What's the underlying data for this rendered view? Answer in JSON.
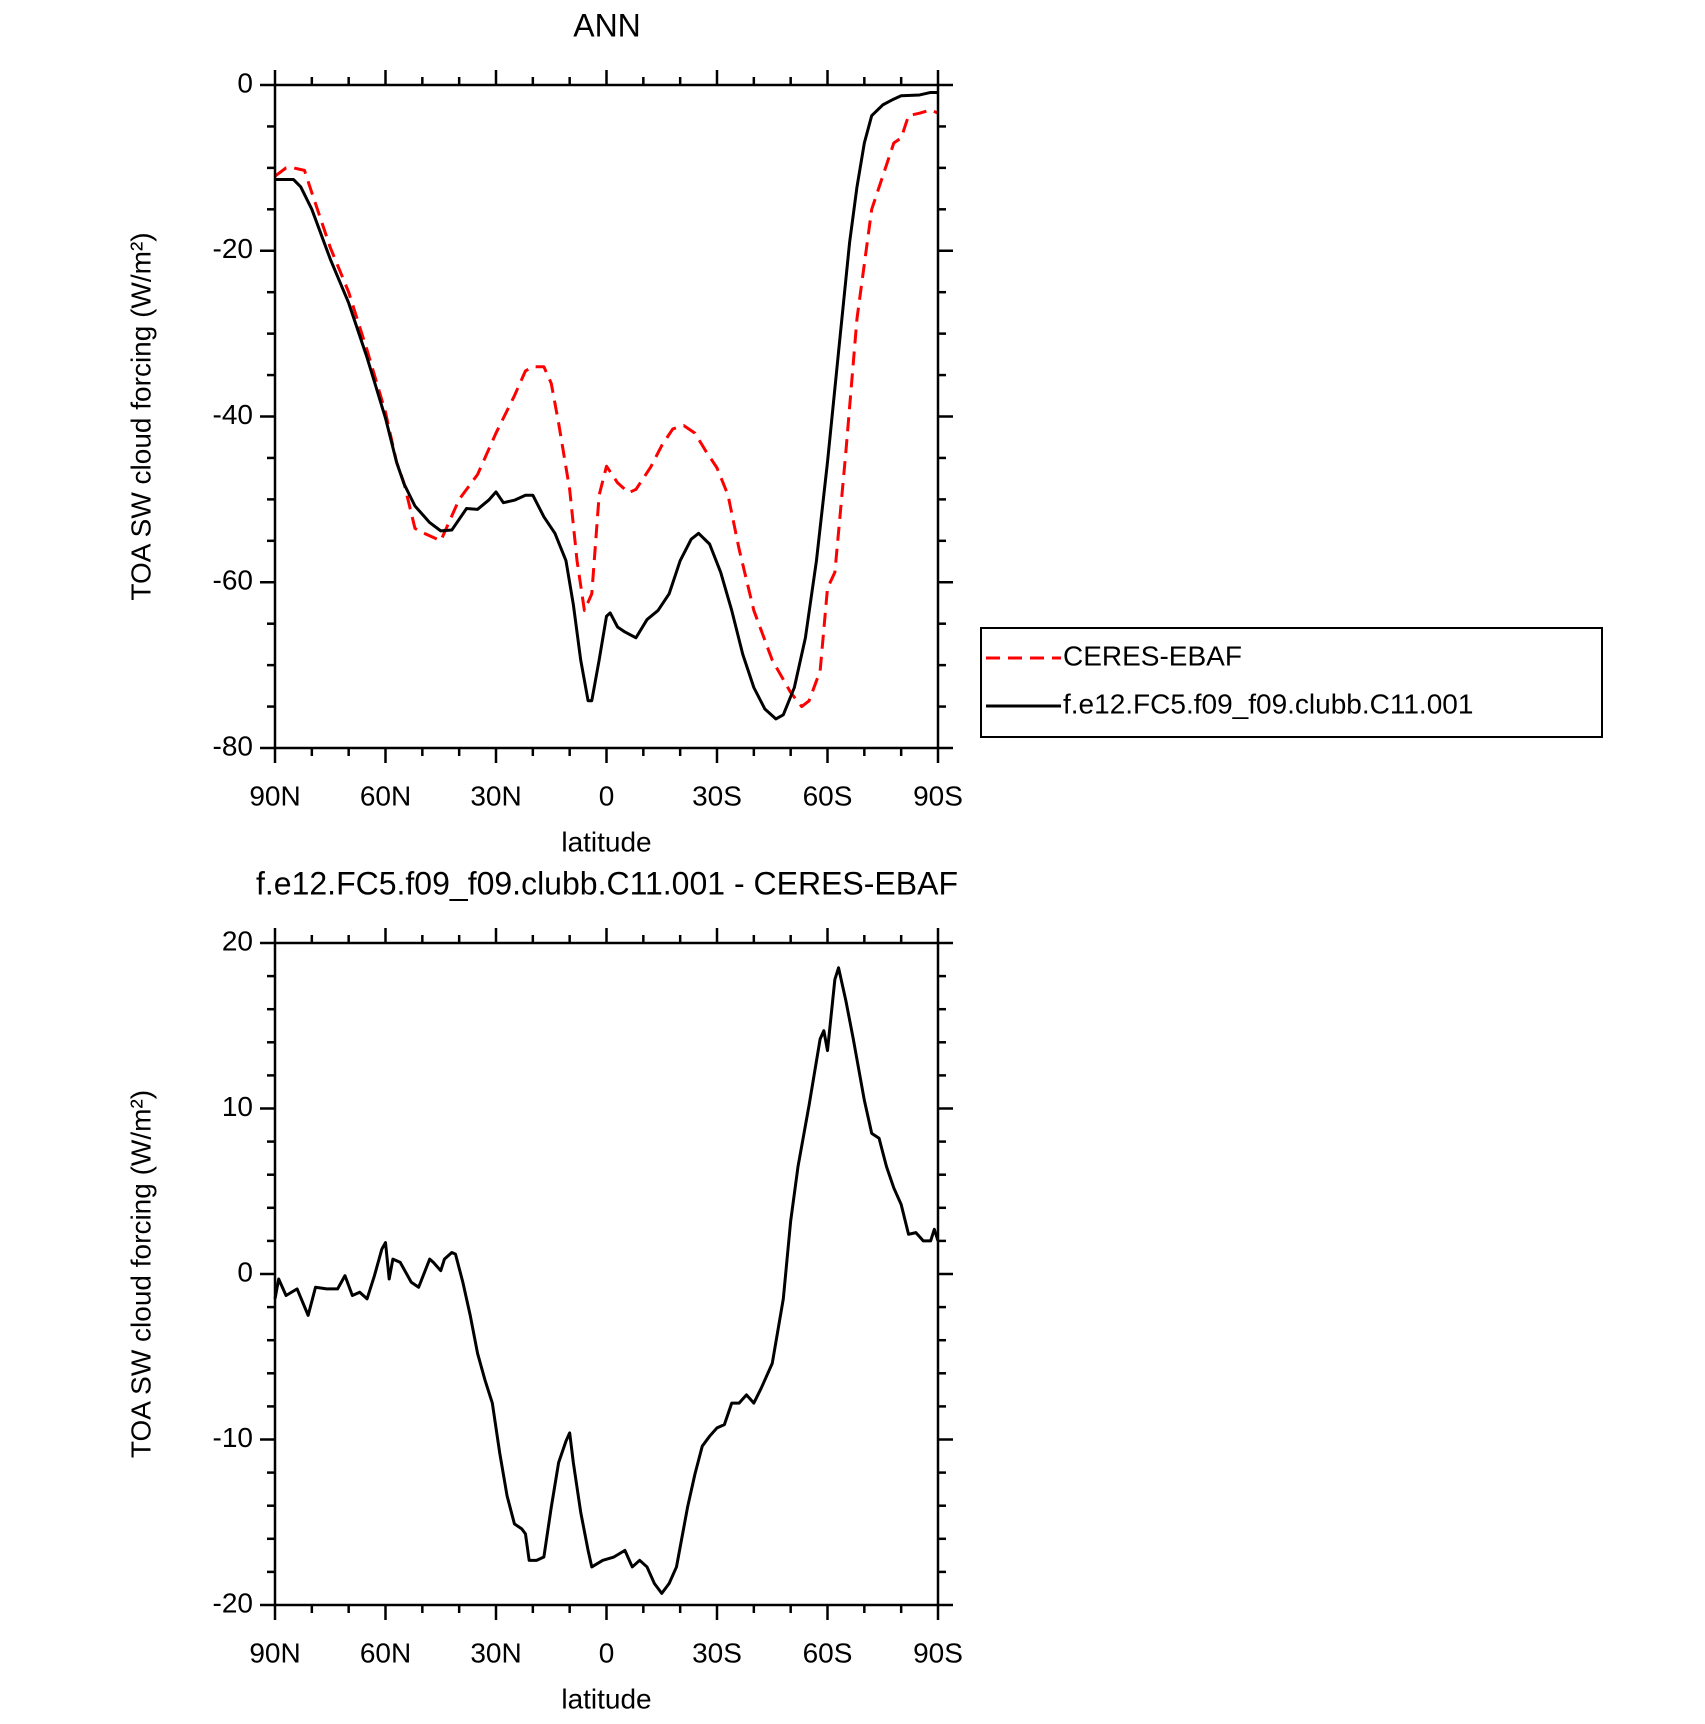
{
  "chart_data": [
    {
      "type": "line",
      "title": "ANN",
      "xlabel": "latitude",
      "ylabel": "TOA SW cloud forcing (W/m²)",
      "xlim": [
        90,
        -90
      ],
      "xticks": [
        {
          "value": 90,
          "label": "90N"
        },
        {
          "value": 60,
          "label": "60N"
        },
        {
          "value": 30,
          "label": "30N"
        },
        0,
        {
          "value": -30,
          "label": "30S"
        },
        {
          "value": -60,
          "label": "60S"
        },
        {
          "value": -90,
          "label": "90S"
        }
      ],
      "xminorticks": [
        80,
        70,
        50,
        40,
        20,
        10,
        -10,
        -20,
        -40,
        -50,
        -70,
        -80
      ],
      "ylim": [
        -80,
        0
      ],
      "yticks": [
        -80,
        -60,
        -40,
        -20,
        0
      ],
      "yminorticks": [
        -75,
        -70,
        -65,
        -55,
        -50,
        -45,
        -35,
        -30,
        -25,
        -15,
        -10,
        -5
      ],
      "legend": "right",
      "series": [
        {
          "name": "CERES-EBAF",
          "color": "#ff0000",
          "dash": true,
          "x": [
            90,
            87,
            85,
            82,
            80,
            75,
            70,
            65,
            60,
            57,
            55,
            52,
            50,
            45,
            40,
            35,
            30,
            25,
            22,
            20,
            17,
            15,
            13,
            10,
            8,
            6,
            4,
            2,
            0,
            -3,
            -6,
            -8,
            -12,
            -15,
            -18,
            -21,
            -24,
            -27,
            -30,
            -33,
            -36,
            -40,
            -45,
            -50,
            -53,
            -55,
            -58,
            -60,
            -62,
            -65,
            -68,
            -72,
            -75,
            -78,
            -80,
            -82,
            -85,
            -88,
            -90
          ],
          "values": [
            -11,
            -10,
            -10,
            -10.3,
            -13,
            -19.6,
            -25,
            -32,
            -39.5,
            -45.5,
            -48,
            -53.5,
            -54,
            -55,
            -50,
            -47,
            -42,
            -37.5,
            -34.5,
            -34,
            -34,
            -36,
            -40.8,
            -48.8,
            -57.4,
            -63.4,
            -61.4,
            -49.5,
            -46,
            -48,
            -49.2,
            -48.8,
            -46.1,
            -43.5,
            -41.5,
            -41.1,
            -42,
            -44.2,
            -46.2,
            -49.5,
            -56,
            -63.4,
            -69.4,
            -73.3,
            -75,
            -74.3,
            -70.7,
            -60.7,
            -58.8,
            -44.2,
            -28.2,
            -15,
            -11,
            -7,
            -6.4,
            -3.7,
            -3.4,
            -3,
            -3.4
          ]
        },
        {
          "name": "f.e12.FC5.f09_f09.clubb.C11.001",
          "color": "#000000",
          "dash": false,
          "x": [
            90,
            85,
            83,
            80,
            75,
            70,
            65,
            60,
            57,
            55,
            52,
            48,
            45,
            42,
            38,
            35,
            32,
            30,
            28,
            25,
            22,
            20,
            17,
            14,
            11,
            9,
            7,
            5,
            4,
            2,
            0,
            -1,
            -3,
            -5,
            -8,
            -11,
            -14,
            -17,
            -20,
            -23,
            -25,
            -28,
            -31,
            -34,
            -37,
            -40,
            -43,
            -46,
            -48,
            -51,
            -54,
            -57,
            -60,
            -63,
            -66,
            -68,
            -70,
            -72,
            -75,
            -78,
            -80,
            -85,
            -88,
            -90
          ],
          "values": [
            -11.4,
            -11.4,
            -12.3,
            -15,
            -21,
            -26.3,
            -32.9,
            -40.2,
            -45.5,
            -48.1,
            -50.8,
            -52.8,
            -53.8,
            -53.7,
            -51.1,
            -51.2,
            -50.1,
            -49.1,
            -50.4,
            -50.1,
            -49.5,
            -49.5,
            -52.1,
            -54.1,
            -57.4,
            -62.7,
            -69.4,
            -74.3,
            -74.3,
            -69.4,
            -64.1,
            -63.7,
            -65.4,
            -66,
            -66.7,
            -64.5,
            -63.4,
            -61.4,
            -57.4,
            -54.8,
            -54.1,
            -55.4,
            -58.8,
            -63.4,
            -68.7,
            -72.7,
            -75.3,
            -76.5,
            -76,
            -72.7,
            -66.7,
            -57.4,
            -45.5,
            -32.2,
            -19,
            -12.3,
            -7,
            -3.7,
            -2.4,
            -1.7,
            -1.3,
            -1.2,
            -0.9,
            -0.9
          ]
        }
      ]
    },
    {
      "type": "line",
      "title": "f.e12.FC5.f09_f09.clubb.C11.001 - CERES-EBAF",
      "xlabel": "latitude",
      "ylabel": "TOA SW cloud forcing (W/m²)",
      "xlim": [
        90,
        -90
      ],
      "xticks": [
        {
          "value": 90,
          "label": "90N"
        },
        {
          "value": 60,
          "label": "60N"
        },
        {
          "value": 30,
          "label": "30N"
        },
        0,
        {
          "value": -30,
          "label": "30S"
        },
        {
          "value": -60,
          "label": "60S"
        },
        {
          "value": -90,
          "label": "90S"
        }
      ],
      "xminorticks": [
        80,
        70,
        50,
        40,
        20,
        10,
        -10,
        -20,
        -40,
        -50,
        -70,
        -80
      ],
      "ylim": [
        -20,
        20
      ],
      "yticks": [
        -20,
        -10,
        0,
        10,
        20
      ],
      "yminorticks": [
        -18,
        -16,
        -14,
        -12,
        -8,
        -6,
        -4,
        -2,
        2,
        4,
        6,
        8,
        12,
        14,
        16,
        18
      ],
      "series": [
        {
          "color": "#000000",
          "dash": false,
          "x": [
            90,
            89,
            87,
            84,
            81,
            79,
            76,
            73,
            71,
            69,
            67,
            65,
            63,
            61,
            60,
            59,
            58,
            56,
            53,
            51,
            48,
            47,
            45,
            44,
            42,
            41,
            39,
            37,
            35,
            33,
            31,
            29,
            27,
            25,
            23,
            22,
            21,
            19,
            17,
            15,
            13,
            11,
            10,
            9,
            7,
            5,
            4,
            1,
            -2,
            -5,
            -7,
            -9,
            -11,
            -13,
            -15,
            -17,
            -19,
            -22,
            -24,
            -26,
            -28,
            -30,
            -32,
            -34,
            -36,
            -38,
            -40,
            -42,
            -45,
            -48,
            -50,
            -52,
            -55,
            -58,
            -59,
            -60,
            -62,
            -63,
            -65,
            -67,
            -70,
            -72,
            -74,
            -76,
            -78,
            -80,
            -82,
            -84,
            -86,
            -88,
            -89,
            -90
          ],
          "values": [
            -1.5,
            -0.3,
            -1.3,
            -0.9,
            -2.5,
            -0.8,
            -0.9,
            -0.9,
            -0.1,
            -1.3,
            -1.1,
            -1.5,
            -0.1,
            1.5,
            1.9,
            -0.3,
            0.9,
            0.7,
            -0.5,
            -0.8,
            0.9,
            0.7,
            0.2,
            0.9,
            1.3,
            1.2,
            -0.5,
            -2.5,
            -4.8,
            -6.4,
            -7.8,
            -10.8,
            -13.4,
            -15.1,
            -15.4,
            -15.7,
            -17.3,
            -17.3,
            -17.1,
            -14.1,
            -11.4,
            -10.1,
            -9.6,
            -11.4,
            -14.4,
            -16.7,
            -17.7,
            -17.3,
            -17.1,
            -16.7,
            -17.7,
            -17.3,
            -17.7,
            -18.7,
            -19.3,
            -18.7,
            -17.7,
            -14.1,
            -12.1,
            -10.4,
            -9.8,
            -9.3,
            -9.1,
            -7.8,
            -7.8,
            -7.3,
            -7.8,
            -6.9,
            -5.4,
            -1.5,
            3.2,
            6.5,
            10.2,
            14.2,
            14.7,
            13.5,
            17.8,
            18.5,
            16.5,
            14.2,
            10.5,
            8.5,
            8.2,
            6.5,
            5.2,
            4.2,
            2.4,
            2.5,
            2.0,
            2.0,
            2.7,
            2.0
          ]
        }
      ]
    }
  ]
}
